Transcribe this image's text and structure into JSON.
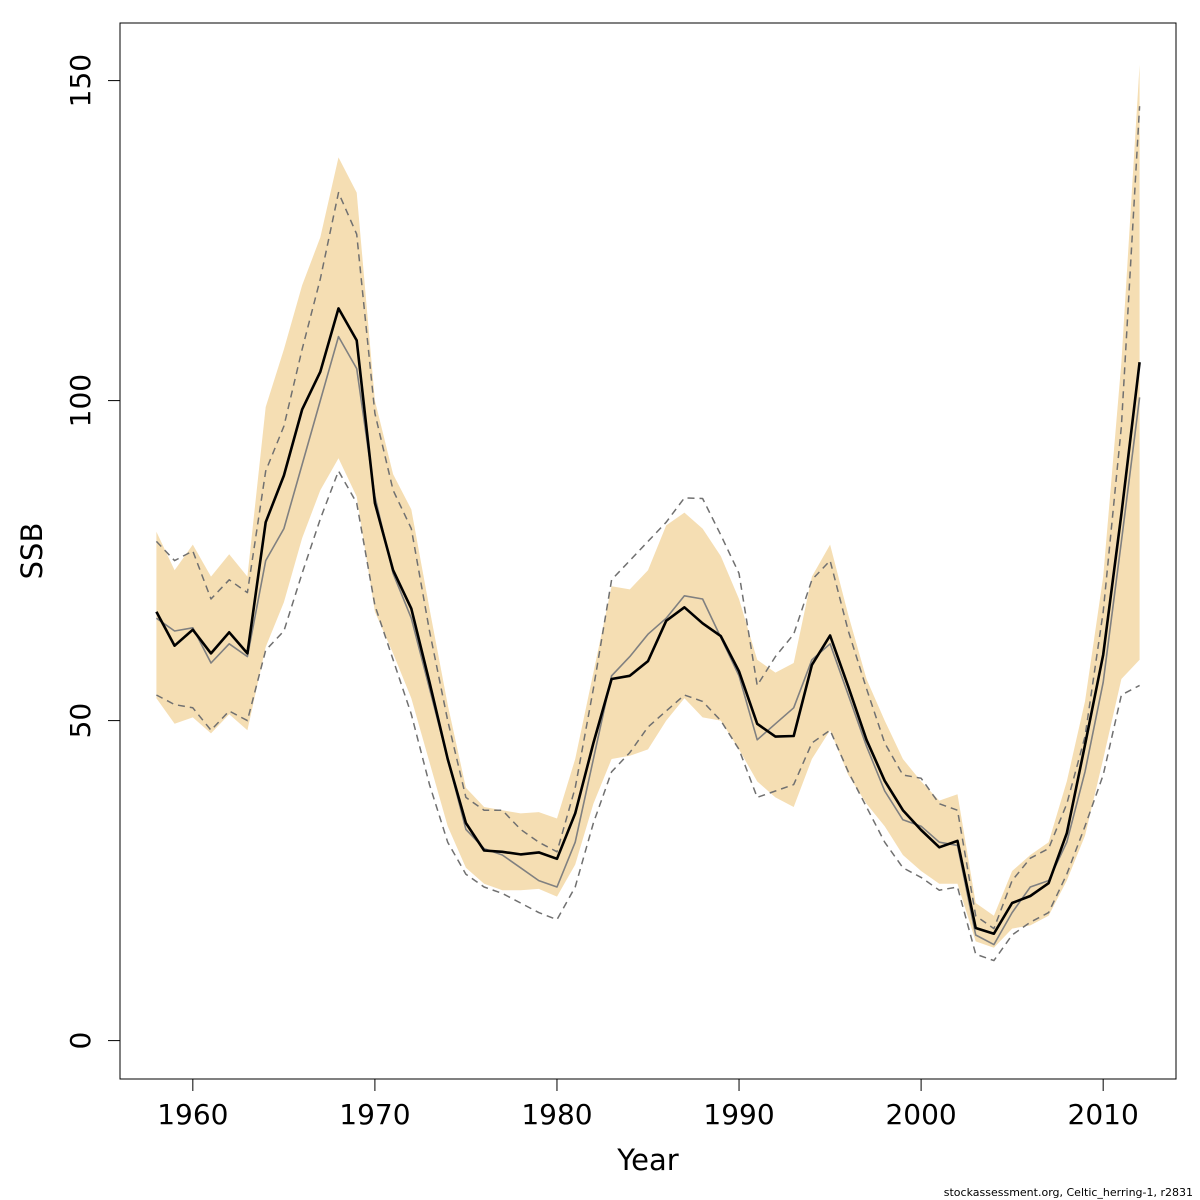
{
  "chart_data": {
    "type": "line",
    "xlabel": "Year",
    "ylabel": "SSB",
    "xlim": [
      1956,
      2014
    ],
    "ylim": [
      -6,
      159
    ],
    "x_ticks": [
      1960,
      1970,
      1980,
      1990,
      2000,
      2010
    ],
    "y_ticks": [
      0,
      50,
      100,
      150
    ],
    "grid": false,
    "legend": "none",
    "credit": "stockassessment.org, Celtic_herring-1, r2831",
    "colors": {
      "band": "#f5deb3",
      "estimate": "#000000",
      "comparison": "#808080",
      "bounds": "#707070",
      "axis": "#000000"
    },
    "x": [
      1958,
      1959,
      1960,
      1961,
      1962,
      1963,
      1964,
      1965,
      1966,
      1967,
      1968,
      1969,
      1970,
      1971,
      1972,
      1973,
      1974,
      1975,
      1976,
      1977,
      1978,
      1979,
      1980,
      1981,
      1982,
      1983,
      1984,
      1985,
      1986,
      1987,
      1988,
      1989,
      1990,
      1991,
      1992,
      1993,
      1994,
      1995,
      1996,
      1997,
      1998,
      1999,
      2000,
      2001,
      2002,
      2003,
      2004,
      2005,
      2006,
      2007,
      2008,
      2009,
      2010,
      2011,
      2012
    ],
    "band_upper": [
      79.5,
      73.5,
      77.5,
      72.5,
      76,
      72.5,
      99,
      108,
      118,
      125.5,
      138,
      132.5,
      100,
      88.5,
      83,
      67.5,
      52.5,
      39.5,
      36.5,
      36,
      35.5,
      35.7,
      34.7,
      44,
      57.5,
      71,
      70.5,
      73.5,
      80.5,
      82.5,
      80,
      75.7,
      69,
      59.5,
      57.5,
      59,
      72.5,
      77.5,
      66.5,
      56.5,
      50,
      44,
      40.5,
      37.5,
      38.5,
      21.5,
      19.5,
      26.5,
      29,
      31,
      40.5,
      53,
      72.5,
      106,
      152.5
    ],
    "band_lower": [
      53.5,
      49.5,
      50.5,
      48,
      51,
      48.5,
      61.5,
      68.5,
      78.5,
      86,
      91,
      85,
      67,
      60.5,
      53.5,
      43.5,
      33.5,
      27,
      24.5,
      23.5,
      23.5,
      23.7,
      22.5,
      27.5,
      37,
      44,
      44.5,
      45.5,
      50,
      53.5,
      50.5,
      50,
      45.5,
      40.5,
      38,
      36.5,
      44,
      48.5,
      41.5,
      37,
      33.5,
      29,
      26.5,
      24.5,
      24.5,
      15.5,
      14.5,
      17.5,
      18,
      19.5,
      25,
      32,
      44,
      56.5,
      59.5
    ],
    "series": [
      {
        "name": "",
        "values": [
          67,
          61.7,
          64.2,
          60.5,
          63.8,
          60.5,
          81,
          88.3,
          98.6,
          104.5,
          114.4,
          109.4,
          84,
          73.5,
          67.5,
          56,
          44,
          34,
          29.7,
          29.5,
          29.1,
          29.4,
          28.4,
          35.5,
          46.5,
          56.5,
          57,
          59.3,
          65.6,
          67.7,
          65.2,
          63.2,
          57.7,
          49.5,
          47.5,
          47.6,
          58.7,
          63.3,
          55.3,
          47,
          40.6,
          36,
          32.9,
          30.2,
          31.2,
          17.6,
          16.7,
          21.5,
          22.6,
          24.6,
          32.4,
          46.2,
          60.3,
          82.3,
          106
        ]
      },
      {
        "name": "",
        "values": [
          66,
          64,
          64.5,
          59,
          62,
          60,
          75,
          80,
          90,
          100,
          110,
          105,
          85,
          73,
          66,
          55,
          44,
          33,
          30,
          29,
          27,
          25,
          24,
          31,
          44,
          57,
          60,
          63.5,
          66,
          69.5,
          69,
          63,
          57,
          47,
          49.5,
          52,
          59.5,
          62,
          54,
          46,
          39,
          34.5,
          33.5,
          31,
          30.5,
          16.5,
          15,
          20,
          24,
          25,
          31,
          42,
          56,
          78,
          100.5
        ]
      },
      {
        "name": "",
        "values": [
          78,
          75,
          76.5,
          69,
          72,
          70,
          89,
          96,
          108,
          119,
          132.5,
          126,
          98,
          86,
          80,
          64,
          50,
          38,
          36,
          36,
          33,
          31,
          29.5,
          39.5,
          55,
          72,
          75,
          78,
          81,
          84.8,
          84.7,
          79,
          73,
          55.5,
          60,
          63.5,
          72,
          75,
          64,
          55,
          46.5,
          41.5,
          41,
          37,
          36,
          19.5,
          17.5,
          25,
          28.5,
          30,
          37,
          47.5,
          67,
          96,
          146
        ]
      },
      {
        "name": "",
        "values": [
          54,
          52.5,
          52,
          48.5,
          51.5,
          50,
          61,
          64,
          73,
          81.5,
          89,
          84,
          68,
          59.5,
          51,
          40,
          31,
          26,
          24,
          23,
          21.5,
          20,
          18.9,
          24,
          34,
          42,
          45,
          49,
          51.5,
          54,
          53,
          50,
          45.5,
          38,
          39,
          40,
          46.5,
          48.5,
          42,
          36.5,
          31,
          27,
          25.5,
          23.5,
          24,
          13.5,
          12.5,
          16.5,
          18.5,
          20,
          26,
          33.5,
          41.5,
          54,
          55.5
        ]
      }
    ]
  }
}
